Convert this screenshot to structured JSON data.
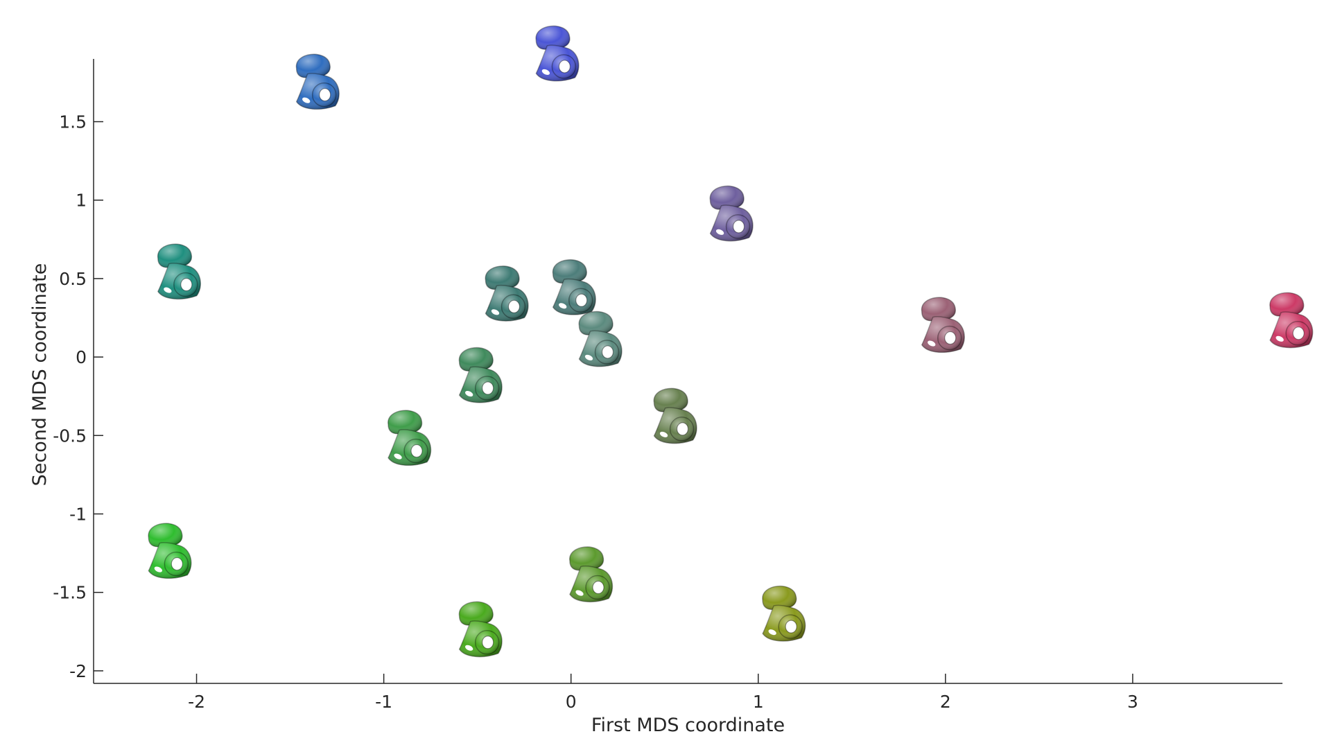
{
  "chart_data": {
    "type": "scatter",
    "marker": "inner-ear-shape-glyph",
    "xlabel": "First MDS coordinate",
    "ylabel": "Second MDS coordinate",
    "xlim": [
      -2.55,
      3.8
    ],
    "ylim": [
      -2.08,
      1.9
    ],
    "xticks": [
      -2,
      -1,
      0,
      1,
      2,
      3
    ],
    "yticks": [
      1.5,
      1,
      0.5,
      0,
      -0.5,
      -1,
      -1.5,
      -2
    ],
    "xtick_labels": [
      "-2",
      "-1",
      "0",
      "1",
      "2",
      "3"
    ],
    "ytick_labels": [
      "1.5",
      "1",
      "0.5",
      "0",
      "-0.5",
      "-1",
      "-1.5",
      "-2"
    ],
    "grid": false,
    "points": [
      {
        "x": -1.37,
        "y": 1.76,
        "color": "#2f6dbf"
      },
      {
        "x": -0.09,
        "y": 1.94,
        "color": "#4a55d6"
      },
      {
        "x": 0.84,
        "y": 0.92,
        "color": "#6e5f9e"
      },
      {
        "x": -2.11,
        "y": 0.55,
        "color": "#1f8f7f"
      },
      {
        "x": -0.36,
        "y": 0.41,
        "color": "#3d7a73"
      },
      {
        "x": 0.0,
        "y": 0.45,
        "color": "#4c7d7a"
      },
      {
        "x": 0.14,
        "y": 0.12,
        "color": "#5b8a7e"
      },
      {
        "x": 1.97,
        "y": 0.21,
        "color": "#9b6175"
      },
      {
        "x": 3.83,
        "y": 0.24,
        "color": "#cc3a66"
      },
      {
        "x": -0.5,
        "y": -0.11,
        "color": "#3f8a5c"
      },
      {
        "x": 0.54,
        "y": -0.37,
        "color": "#67804f"
      },
      {
        "x": -0.88,
        "y": -0.51,
        "color": "#3f9d4a"
      },
      {
        "x": -2.16,
        "y": -1.23,
        "color": "#2fbd2f"
      },
      {
        "x": 0.09,
        "y": -1.38,
        "color": "#5c9a2e"
      },
      {
        "x": -0.5,
        "y": -1.73,
        "color": "#4aaa1e"
      },
      {
        "x": 1.12,
        "y": -1.63,
        "color": "#8a9a1e"
      }
    ]
  }
}
